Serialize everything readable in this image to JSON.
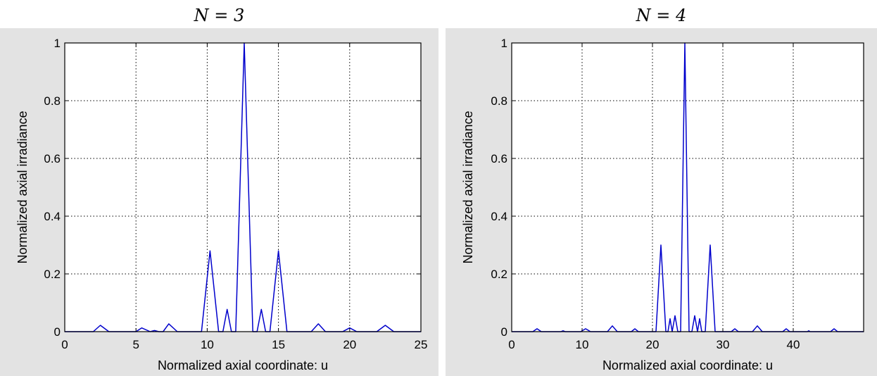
{
  "panels": [
    {
      "title": "N = 3"
    },
    {
      "title": "N = 4"
    }
  ],
  "chart_data": [
    {
      "type": "line",
      "title": "N = 3",
      "xlabel": "Normalized axial coordinate: u",
      "ylabel": "Normalized axial irradiance",
      "xlim": [
        0,
        25
      ],
      "ylim": [
        0,
        1
      ],
      "xticks": [
        0,
        5,
        10,
        15,
        20,
        25
      ],
      "yticks": [
        0,
        0.2,
        0.4,
        0.6,
        0.8,
        1
      ],
      "grid": true,
      "color": "#0000cc",
      "x": [
        0,
        2.0,
        2.5,
        3.1,
        5.0,
        5.4,
        6.0,
        6.3,
        6.6,
        6.9,
        7.3,
        7.9,
        8.3,
        9.6,
        10.2,
        10.8,
        11.1,
        11.4,
        11.7,
        12.0,
        12.6,
        13.2,
        13.5,
        13.8,
        14.1,
        14.4,
        15.0,
        15.6,
        16.3,
        17.3,
        17.8,
        18.3,
        19.5,
        20.0,
        20.5,
        21.9,
        22.5,
        23.1,
        25
      ],
      "series": [
        {
          "values": [
            0,
            0,
            0.022,
            0,
            0,
            0.013,
            0,
            0.004,
            0,
            0,
            0.027,
            0,
            0,
            0,
            0.28,
            0,
            0,
            0.077,
            0,
            0,
            1.0,
            0,
            0,
            0.077,
            0,
            0,
            0.28,
            0,
            0,
            0,
            0.027,
            0,
            0,
            0.013,
            0,
            0,
            0.022,
            0,
            0
          ]
        }
      ]
    },
    {
      "type": "line",
      "title": "N = 4",
      "xlabel": "Normalized axial coordinate: u",
      "ylabel": "Normalized axial irradiance",
      "xlim": [
        0,
        50
      ],
      "ylim": [
        0,
        1
      ],
      "xticks": [
        0,
        10,
        20,
        30,
        40
      ],
      "yticks": [
        0,
        0.2,
        0.4,
        0.6,
        0.8,
        1
      ],
      "grid": true,
      "color": "#0000cc",
      "x": [
        0,
        3.0,
        3.6,
        4.2,
        7.0,
        7.3,
        7.6,
        9.8,
        10.5,
        11.2,
        13.6,
        14.3,
        15.0,
        17.0,
        17.5,
        18.0,
        20.5,
        21.2,
        21.9,
        22.2,
        22.5,
        22.8,
        23.2,
        23.6,
        24.0,
        24.6,
        25.2,
        25.6,
        26.0,
        26.4,
        26.7,
        27.0,
        27.3,
        27.5,
        28.2,
        28.9,
        31.2,
        31.7,
        32.2,
        34.2,
        34.9,
        35.6,
        38.5,
        39.0,
        39.5,
        42.0,
        42.2,
        42.4,
        45.3,
        45.8,
        46.3,
        50
      ],
      "series": [
        {
          "values": [
            0,
            0,
            0.01,
            0,
            0,
            0.003,
            0,
            0,
            0.01,
            0,
            0,
            0.02,
            0,
            0,
            0.01,
            0,
            0,
            0.3,
            0,
            0,
            0.045,
            0,
            0.055,
            0,
            0,
            1.0,
            0,
            0,
            0.055,
            0,
            0.045,
            0,
            0,
            0,
            0.3,
            0,
            0,
            0.01,
            0,
            0,
            0.02,
            0,
            0,
            0.01,
            0,
            0,
            0.003,
            0,
            0,
            0.01,
            0,
            0
          ]
        }
      ]
    }
  ]
}
